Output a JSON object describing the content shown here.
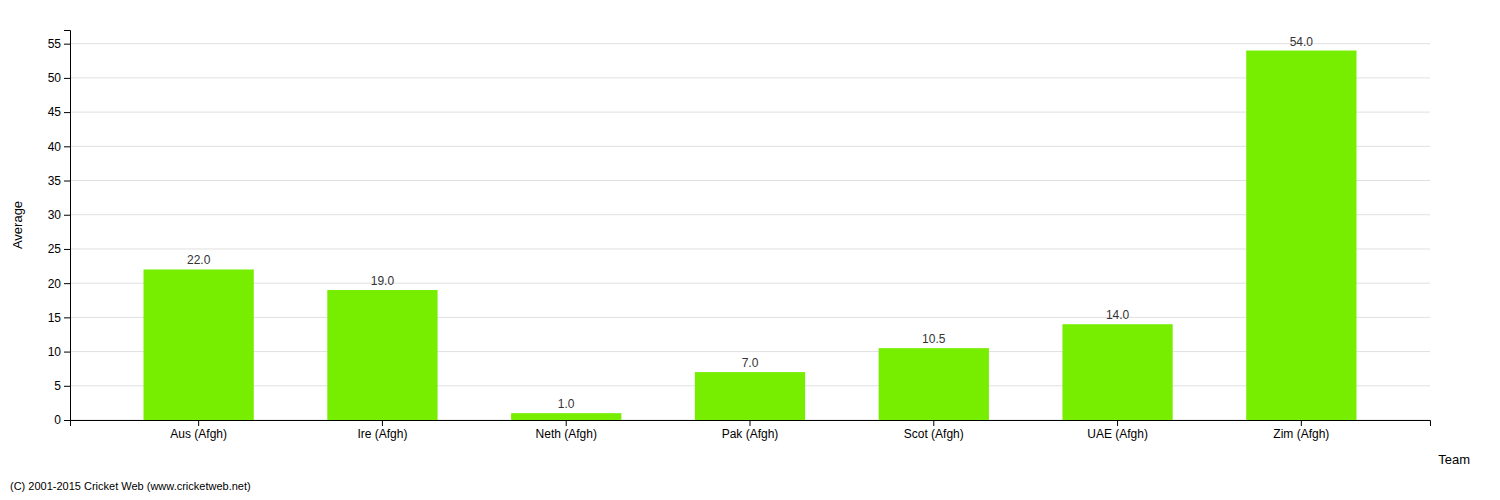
{
  "chart_data": {
    "type": "bar",
    "categories": [
      "Aus (Afgh)",
      "Ire (Afgh)",
      "Neth (Afgh)",
      "Pak (Afgh)",
      "Scot (Afgh)",
      "UAE (Afgh)",
      "Zim (Afgh)"
    ],
    "values": [
      22.0,
      19.0,
      1.0,
      7.0,
      10.5,
      14.0,
      54.0
    ],
    "value_labels": [
      "22.0",
      "19.0",
      "1.0",
      "7.0",
      "10.5",
      "14.0",
      "54.0"
    ],
    "data_labels": true,
    "color": "#77ee00",
    "xlabel": "Team",
    "ylabel": "Average",
    "ylim": [
      0,
      57
    ],
    "yticks": [
      0,
      5,
      10,
      15,
      20,
      25,
      30,
      35,
      40,
      45,
      50,
      55
    ],
    "grid": true,
    "annotations": [
      "(C) 2001-2015 Cricket Web (www.cricketweb.net)"
    ]
  }
}
